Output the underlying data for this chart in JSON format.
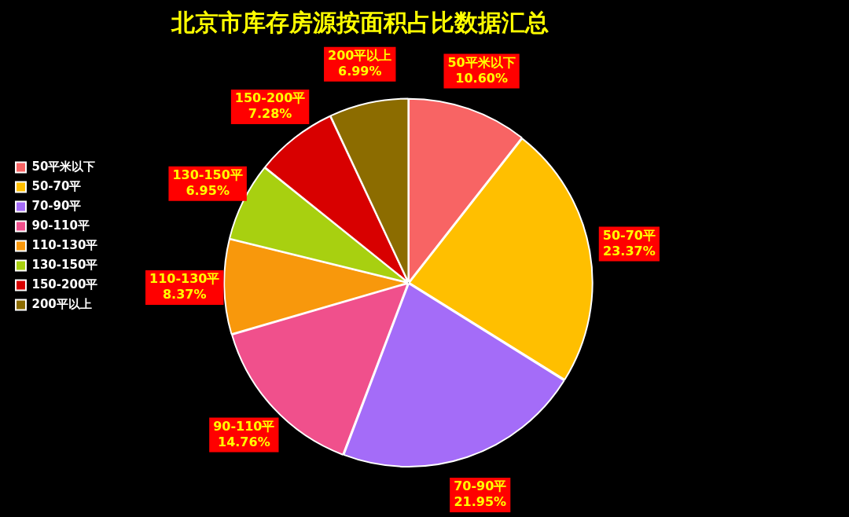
{
  "chart_data": {
    "type": "pie",
    "title": "北京市库存房源按面积占比数据汇总",
    "categories": [
      "50平米以下",
      "50-70平",
      "70-90平",
      "90-110平",
      "110-130平",
      "130-150平",
      "150-200平",
      "200平以上"
    ],
    "values": [
      10.6,
      23.37,
      21.95,
      14.76,
      8.37,
      6.95,
      7.28,
      6.99
    ],
    "value_labels": [
      "10.60%",
      "23.37%",
      "21.95%",
      "14.76%",
      "8.37%",
      "6.95%",
      "7.28%",
      "6.99%"
    ],
    "colors": [
      "#f86464",
      "#ffbf00",
      "#a46cf8",
      "#f0508c",
      "#f8980c",
      "#a8d010",
      "#d80000",
      "#8c6c00"
    ],
    "legend": "left"
  }
}
